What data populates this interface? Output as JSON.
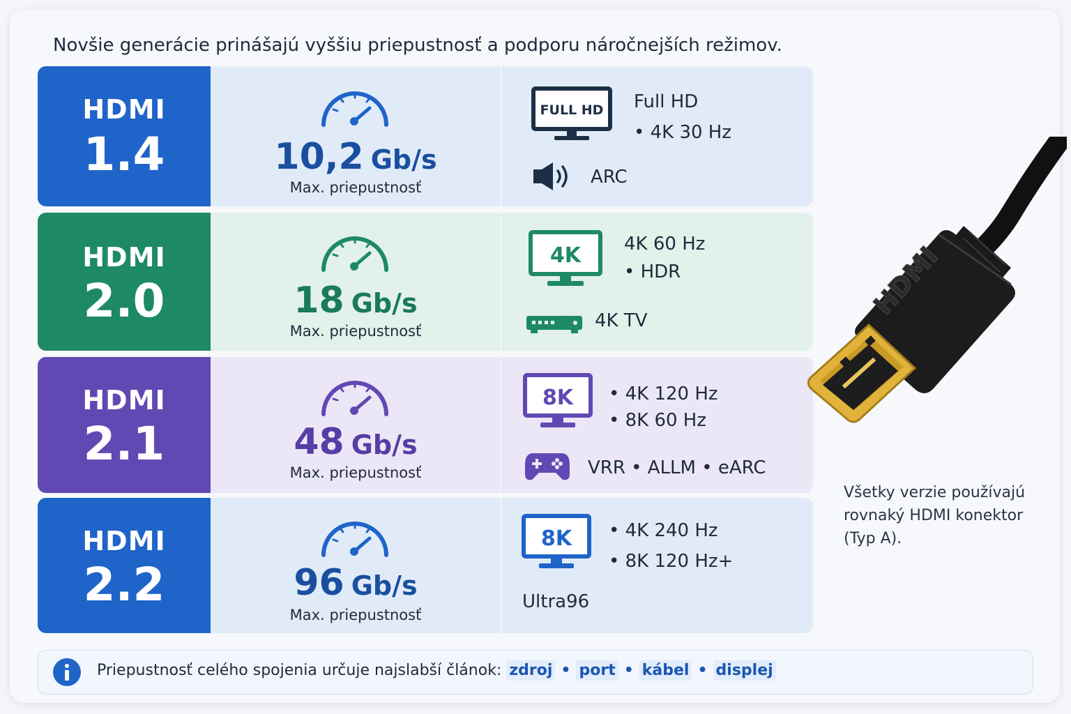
{
  "headline": "Novšie generácie prinášajú vyššiu priepustnosť a podporu náročnejších režimov.",
  "rows": [
    {
      "label": "HDMI",
      "version": "1.4",
      "rate_value": "10,2",
      "rate_unit": "Gb/s",
      "rate_caption": "Max. priepustnosť",
      "screen_label": "FULL HD",
      "features": [
        "Full HD",
        "• 4K 30 Hz",
        "ARC"
      ],
      "icons": [
        "gauge-icon",
        "monitor-icon",
        "speaker-icon"
      ],
      "accent": "#1f64c8",
      "bg": "#e1ebf8"
    },
    {
      "label": "HDMI",
      "version": "2.0",
      "rate_value": "18",
      "rate_unit": "Gb/s",
      "rate_caption": "Max. priepustnosť",
      "screen_label": "4K",
      "features": [
        "4K 60 Hz",
        "• HDR",
        "4K TV"
      ],
      "icons": [
        "gauge-icon",
        "monitor-icon",
        "set-top-box-icon"
      ],
      "accent": "#1e8a63",
      "bg": "#e2f1ea"
    },
    {
      "label": "HDMI",
      "version": "2.1",
      "rate_value": "48",
      "rate_unit": "Gb/s",
      "rate_caption": "Max. priepustnosť",
      "screen_label": "8K",
      "features": [
        "• 4K 120 Hz",
        "• 8K 60 Hz",
        "VRR  •  ALLM  •  eARC"
      ],
      "icons": [
        "gauge-icon",
        "monitor-icon",
        "gamepad-icon"
      ],
      "accent": "#6149b3",
      "bg": "#ebe7f6"
    },
    {
      "label": "HDMI",
      "version": "2.2",
      "rate_value": "96",
      "rate_unit": "Gb/s",
      "rate_caption": "Max. priepustnosť",
      "screen_label": "8K",
      "features": [
        "• 4K 240 Hz",
        "• 8K 120 Hz+",
        "Ultra96"
      ],
      "icons": [
        "gauge-icon",
        "monitor-icon"
      ],
      "accent": "#1f64c8",
      "bg": "#e1ebf8"
    }
  ],
  "connector_brand": "HDMI",
  "connector_note": "Všetky verzie používajú rovnaký HDMI konektor (Typ A).",
  "info": {
    "text": "Priepustnosť celého spojenia určuje najslabší článok:",
    "links": [
      "zdroj",
      "port",
      "kábel",
      "displej"
    ],
    "separator": "•"
  },
  "colors": {
    "blue": "#1f64c8",
    "green": "#1e8a63",
    "purple": "#6149b3",
    "gold": "#e2b33a"
  }
}
